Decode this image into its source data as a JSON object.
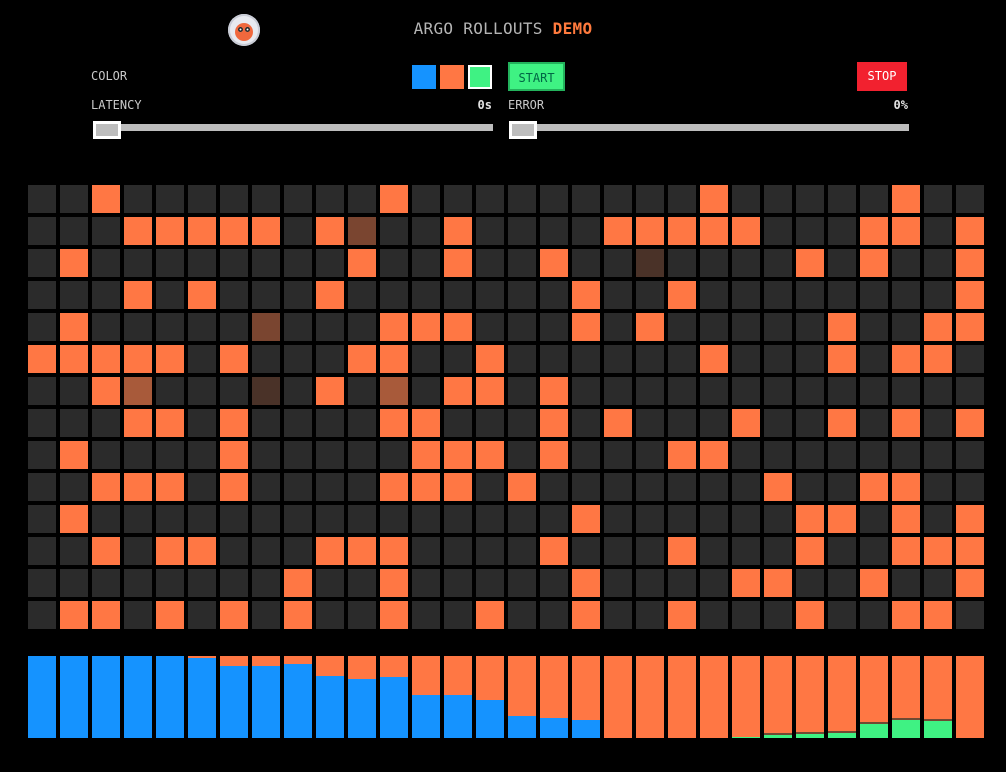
{
  "header": {
    "title": "ARGO ROLLOUTS",
    "title_accent": "DEMO",
    "logo_icon": "argo-octopus-icon"
  },
  "controls": {
    "color_label": "COLOR",
    "swatches": [
      {
        "name": "blue",
        "color": "#1593ff"
      },
      {
        "name": "orange",
        "color": "#ff7744"
      },
      {
        "name": "green",
        "color": "#3ff283"
      }
    ],
    "selected_swatch": "green",
    "start_label": "START",
    "stop_label": "STOP",
    "latency_label": "LATENCY",
    "latency_value": "0s",
    "latency_fraction": 0,
    "error_label": "ERROR",
    "error_value": "0%",
    "error_fraction": 0
  },
  "colors": {
    "idle": "#2b2b2b",
    "orange": "#ff7744",
    "blue": "#1593ff",
    "green": "#3ff283",
    "dim1": "#a85a3a",
    "dim2": "#7a4530",
    "dim3": "#4a3228",
    "trail_brown": "#6e4a33"
  },
  "grid": {
    "cols": 30,
    "rows": 14,
    "legend": "0=idle 1=orange 2=dim1 3=dim2 4=dim3",
    "cells": [
      "001000000001000000000100000100",
      "000111110130010000111110001101",
      "010000000010010010040000101001",
      "000101000100000001001000000001",
      "010000030001110001010000010011",
      "111110100011001000000100010110",
      "001200040102011010000000000000",
      "000110100001100010100010010101",
      "010000100000111010001100000000",
      "001110100001110100000001001100",
      "010000000000000001000000110101",
      "001011000111000010001000100111",
      "000000001001000001000011001001",
      "011010101001001001001000100110"
    ]
  },
  "history": {
    "note": "fractions of column height from bottom: blue, orange, green",
    "bars": [
      {
        "blue": 1.0,
        "orange": 0.0,
        "green": 0.0
      },
      {
        "blue": 1.0,
        "orange": 0.0,
        "green": 0.0
      },
      {
        "blue": 1.0,
        "orange": 0.0,
        "green": 0.0
      },
      {
        "blue": 1.0,
        "orange": 0.0,
        "green": 0.0
      },
      {
        "blue": 1.0,
        "orange": 0.0,
        "green": 0.0
      },
      {
        "blue": 0.98,
        "orange": 0.02,
        "green": 0.0
      },
      {
        "blue": 0.88,
        "orange": 0.12,
        "green": 0.0
      },
      {
        "blue": 0.88,
        "orange": 0.12,
        "green": 0.0
      },
      {
        "blue": 0.9,
        "orange": 0.1,
        "green": 0.0
      },
      {
        "blue": 0.76,
        "orange": 0.24,
        "green": 0.0
      },
      {
        "blue": 0.72,
        "orange": 0.28,
        "green": 0.0
      },
      {
        "blue": 0.74,
        "orange": 0.26,
        "green": 0.0
      },
      {
        "blue": 0.52,
        "orange": 0.48,
        "green": 0.0
      },
      {
        "blue": 0.52,
        "orange": 0.48,
        "green": 0.0
      },
      {
        "blue": 0.46,
        "orange": 0.54,
        "green": 0.0
      },
      {
        "blue": 0.27,
        "orange": 0.73,
        "green": 0.0
      },
      {
        "blue": 0.24,
        "orange": 0.76,
        "green": 0.0
      },
      {
        "blue": 0.22,
        "orange": 0.78,
        "green": 0.0
      },
      {
        "blue": 0.0,
        "orange": 1.0,
        "green": 0.0
      },
      {
        "blue": 0.0,
        "orange": 1.0,
        "green": 0.0
      },
      {
        "blue": 0.0,
        "orange": 1.0,
        "green": 0.0
      },
      {
        "blue": 0.0,
        "orange": 1.0,
        "green": 0.0
      },
      {
        "blue": 0.0,
        "orange": 0.985,
        "green": 0.015
      },
      {
        "blue": 0.0,
        "orange": 0.94,
        "green": 0.06
      },
      {
        "blue": 0.0,
        "orange": 0.93,
        "green": 0.07
      },
      {
        "blue": 0.0,
        "orange": 0.92,
        "green": 0.08
      },
      {
        "blue": 0.0,
        "orange": 0.8,
        "green": 0.2
      },
      {
        "blue": 0.0,
        "orange": 0.76,
        "green": 0.24
      },
      {
        "blue": 0.0,
        "orange": 0.77,
        "green": 0.23
      },
      {
        "blue": 0.0,
        "orange": 1.0,
        "green": 0.0
      }
    ]
  }
}
